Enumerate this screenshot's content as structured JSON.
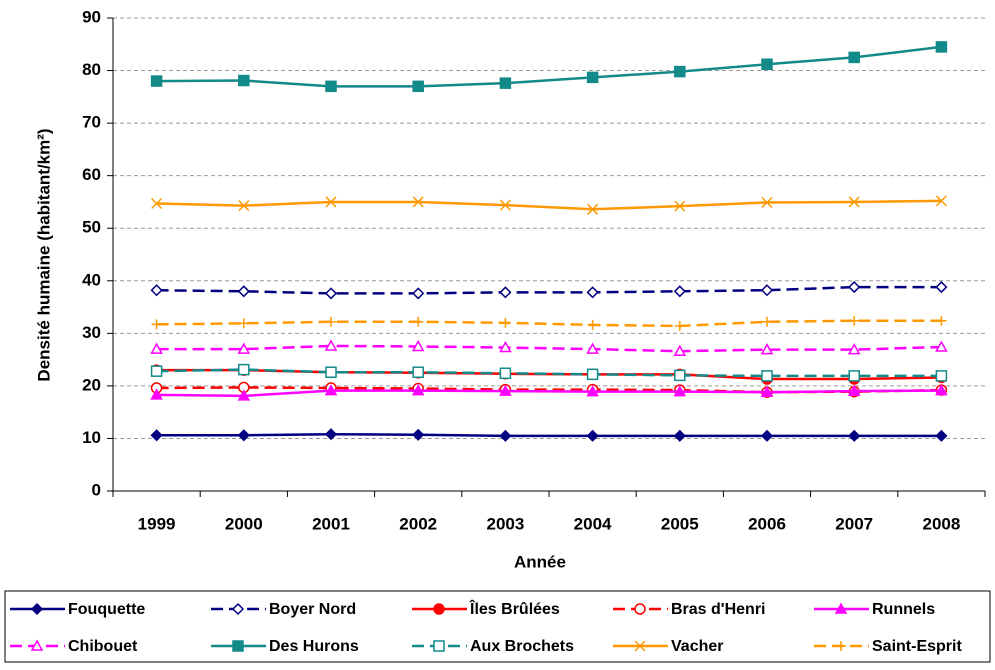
{
  "chart_data": {
    "type": "line",
    "x_label": "Année",
    "y_label": "Densité humaine (habitant/km²)",
    "categories": [
      "1999",
      "2000",
      "2001",
      "2002",
      "2003",
      "2004",
      "2005",
      "2006",
      "2007",
      "2008"
    ],
    "ylim": [
      0,
      90
    ],
    "yticks": [
      0,
      10,
      20,
      30,
      40,
      50,
      60,
      70,
      80,
      90
    ],
    "grid": true,
    "legend": "bottom",
    "series": [
      {
        "name": "Fouquette",
        "color": "#000080",
        "marker": "diamond",
        "dash": false,
        "values": [
          10.6,
          10.6,
          10.8,
          10.7,
          10.5,
          10.5,
          10.5,
          10.5,
          10.5,
          10.5
        ]
      },
      {
        "name": "Boyer Nord",
        "color": "#000080",
        "marker": "diamond-open",
        "dash": true,
        "values": [
          38.2,
          38.0,
          37.6,
          37.6,
          37.8,
          37.8,
          38.0,
          38.2,
          38.8,
          38.8
        ]
      },
      {
        "name": "Îles Brûlées",
        "color": "#ff0000",
        "marker": "circle",
        "dash": false,
        "values": [
          23.0,
          23.0,
          22.6,
          22.5,
          22.3,
          22.2,
          22.2,
          21.3,
          21.3,
          21.6
        ]
      },
      {
        "name": "Bras d'Henri",
        "color": "#ff0000",
        "marker": "circle-open",
        "dash": true,
        "values": [
          19.6,
          19.7,
          19.6,
          19.5,
          19.3,
          19.3,
          19.2,
          18.8,
          18.9,
          19.2
        ]
      },
      {
        "name": "Runnels",
        "color": "#ff00ff",
        "marker": "triangle",
        "dash": false,
        "values": [
          18.3,
          18.1,
          19.1,
          19.1,
          19.0,
          18.9,
          18.9,
          18.8,
          19.0,
          19.1
        ]
      },
      {
        "name": "Chibouet",
        "color": "#ff00ff",
        "marker": "triangle-open",
        "dash": true,
        "values": [
          27.0,
          27.0,
          27.6,
          27.5,
          27.3,
          27.0,
          26.6,
          26.9,
          26.9,
          27.4
        ]
      },
      {
        "name": "Des Hurons",
        "color": "#138a8a",
        "marker": "square",
        "dash": false,
        "values": [
          78.0,
          78.1,
          77.0,
          77.0,
          77.6,
          78.7,
          79.8,
          81.2,
          82.5,
          84.5
        ]
      },
      {
        "name": "Aux Brochets",
        "color": "#138a8a",
        "marker": "square-open",
        "dash": true,
        "values": [
          22.8,
          23.1,
          22.6,
          22.6,
          22.4,
          22.2,
          22.0,
          21.9,
          21.9,
          21.9
        ]
      },
      {
        "name": "Vacher",
        "color": "#ff9900",
        "marker": "x",
        "dash": false,
        "values": [
          54.7,
          54.3,
          55.0,
          55.0,
          54.4,
          53.6,
          54.2,
          54.9,
          55.0,
          55.2
        ]
      },
      {
        "name": "Saint-Esprit",
        "color": "#ff9900",
        "marker": "plus",
        "dash": true,
        "values": [
          31.7,
          31.9,
          32.2,
          32.2,
          32.0,
          31.6,
          31.4,
          32.2,
          32.4,
          32.4
        ]
      }
    ]
  }
}
